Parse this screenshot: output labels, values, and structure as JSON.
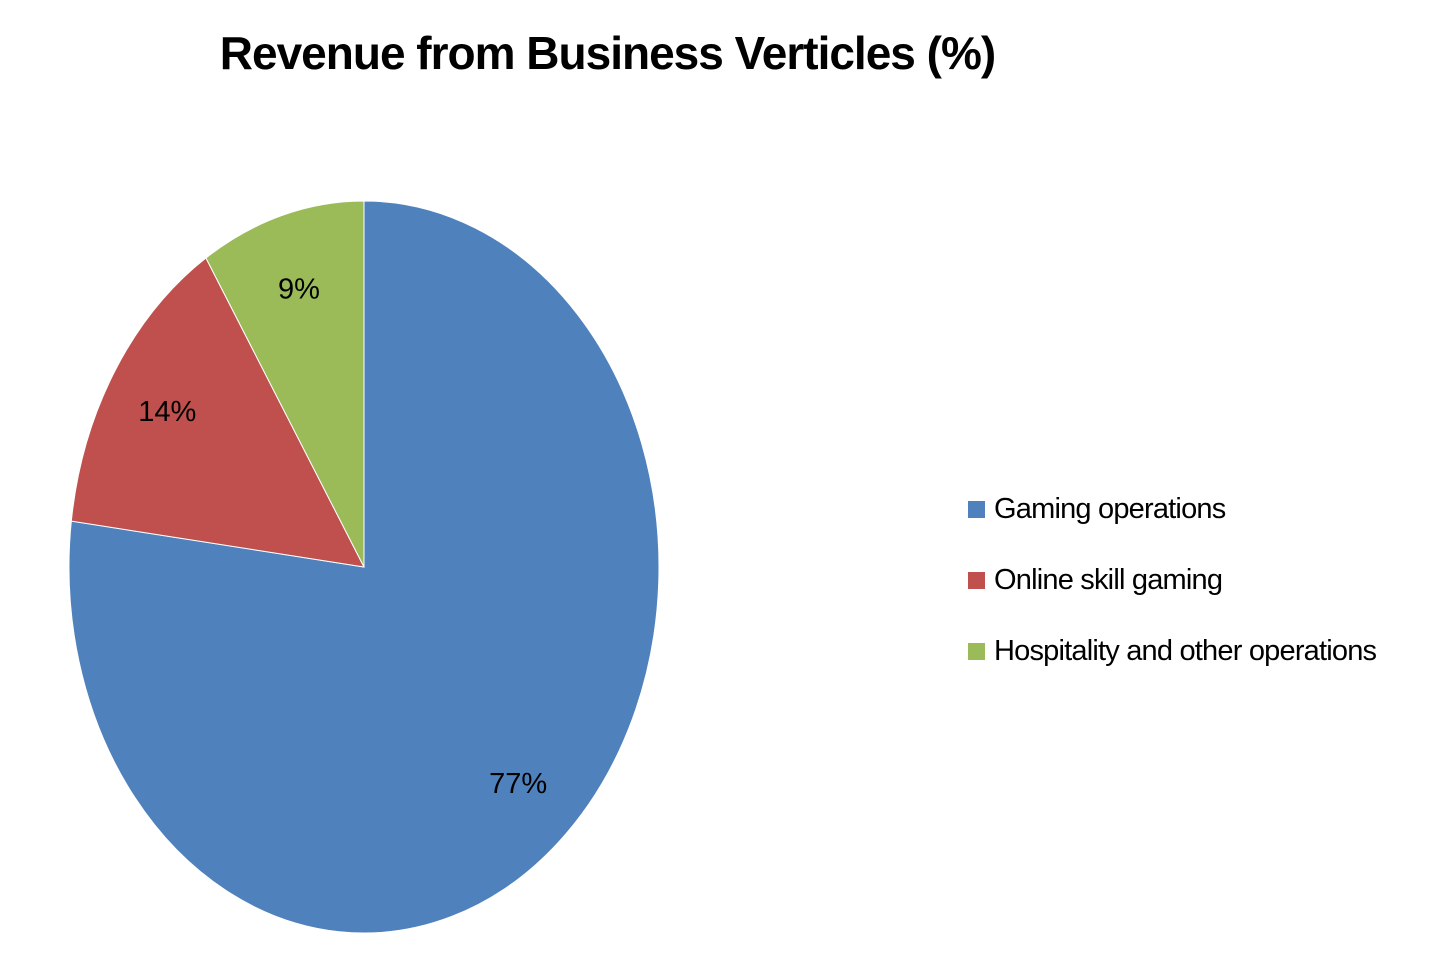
{
  "chart_data": {
    "type": "pie",
    "title": "Revenue from Business Verticles (%)",
    "categories": [
      "Gaming operations",
      "Online skill gaming",
      "Hospitality and other operations"
    ],
    "values": [
      77,
      14,
      9
    ],
    "labels": [
      "77%",
      "14%",
      "9%"
    ],
    "colors": [
      "#4f81bd",
      "#c0504d",
      "#9bbb59"
    ],
    "start_angle": "12 o'clock",
    "direction": "clockwise",
    "legend_position": "right"
  },
  "legend": {
    "items": [
      {
        "label": "Gaming operations",
        "color": "#4f81bd"
      },
      {
        "label": "Online skill gaming",
        "color": "#c0504d"
      },
      {
        "label": "Hospitality and other operations",
        "color": "#9bbb59"
      }
    ]
  }
}
